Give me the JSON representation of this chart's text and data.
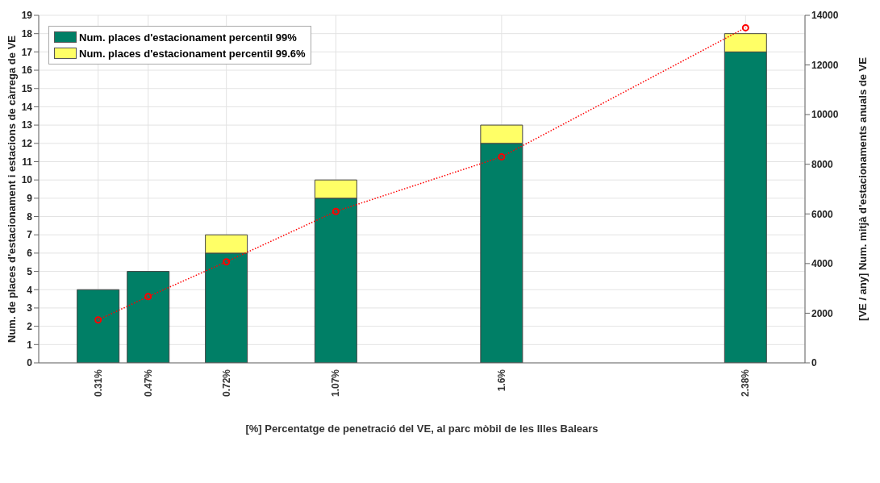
{
  "chart_data": {
    "type": "bar",
    "stacked": true,
    "x": [
      0.31,
      0.47,
      0.72,
      1.07,
      1.6,
      2.38
    ],
    "xlim": [
      0.12,
      2.57
    ],
    "xticks": [
      {
        "value": 0.31,
        "label": "0.31%"
      },
      {
        "value": 0.47,
        "label": "0.47%"
      },
      {
        "value": 0.72,
        "label": "0.72%"
      },
      {
        "value": 1.07,
        "label": "1.07%"
      },
      {
        "value": 1.6,
        "label": "1.6%"
      },
      {
        "value": 2.38,
        "label": "2.38%"
      }
    ],
    "ylim": [
      0,
      19
    ],
    "yticks": [
      0,
      1,
      2,
      3,
      4,
      5,
      6,
      7,
      8,
      9,
      10,
      11,
      12,
      13,
      14,
      15,
      16,
      17,
      18,
      19
    ],
    "y2lim": [
      0,
      14000
    ],
    "y2ticks": [
      0,
      2000,
      4000,
      6000,
      8000,
      10000,
      12000,
      14000
    ],
    "xlabel": "[%] Percentatge de penetració del VE, al parc mòbil de les Illes Balears",
    "ylabel": "Num. de places d'estacionament i estacions de càrrega de VE",
    "y2label": "[VE / any] Num. mitjà d'estacionaments anuals de VE",
    "series": [
      {
        "name": "Num. places d'estacionament percentil 99%",
        "color": "#007f66",
        "values": [
          4,
          5,
          6,
          9,
          12,
          17
        ]
      },
      {
        "name": "Num. places d'estacionament percentil 99.6%",
        "color": "#ffff66",
        "values": [
          0,
          0,
          1,
          1,
          1,
          1
        ]
      },
      {
        "type": "line",
        "axis": "y2",
        "color": "#ff0000",
        "values": [
          1730,
          2670,
          4070,
          6100,
          8300,
          13500
        ]
      }
    ],
    "grid": true,
    "legend": "top left",
    "marker": "circle",
    "line_style": "dotted"
  }
}
